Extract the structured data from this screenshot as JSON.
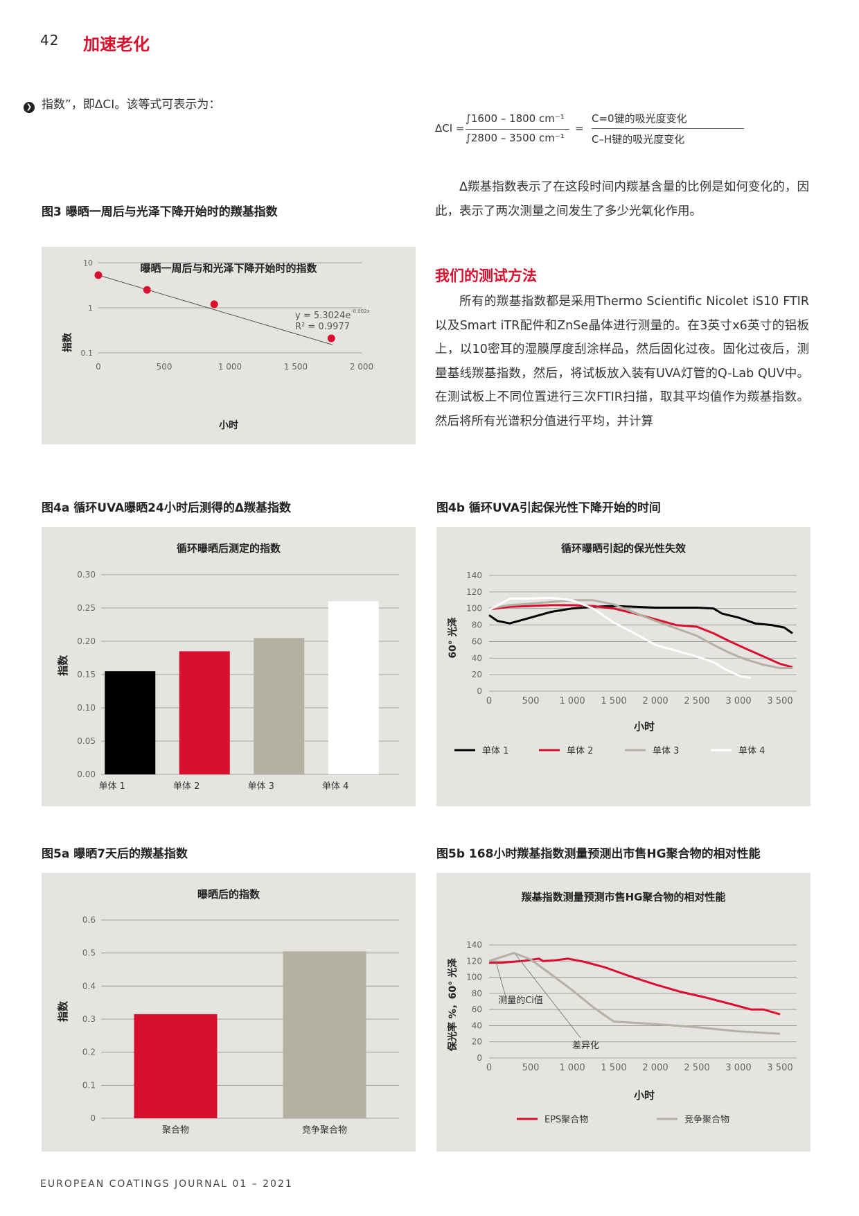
{
  "header": {
    "page_number": "42",
    "section": "加速老化"
  },
  "intro_line": "指数”，即ΔCI。该等式可表示为：",
  "formula": {
    "lhs": "ΔCI =",
    "numerator": "∫1600 – 1800 cm⁻¹",
    "denominator": "∫2800 – 3500 cm⁻¹",
    "equals": "=",
    "right_numerator": "C=0键的吸光度变化",
    "right_denominator": "C–H键的吸光度变化"
  },
  "para1": "Δ羰基指数表示了在这段时间内羰基含量的比例是如何变化的，因此，表示了两次测量之间发生了多少光氧化作用。",
  "section_title": "我们的测试方法",
  "para2": "所有的羰基指数都是采用Thermo Scientific Nicolet iS10 FTIR以及Smart iTR配件和ZnSe晶体进行测量的。在3英寸x6英寸的铝板上，以10密耳的湿膜厚度刮涂样品，然后固化过夜。固化过夜后，测量基线羰基指数，然后，将试板放入装有UVA灯管的Q-Lab QUV中。在测试板上不同位置进行三次FTIR扫描，取其平均值作为羰基指数。然后将所有光谱积分值进行平均，并计算",
  "figures": {
    "fig3": {
      "caption": "图3 曝晒一周后与光泽下降开始时的羰基指数"
    },
    "fig4a": {
      "caption": "图4a 循环UVA曝晒24小时后测得的Δ羰基指数"
    },
    "fig4b": {
      "caption": "图4b 循环UVA引起保光性下降开始的时间"
    },
    "fig5a": {
      "caption": "图5a 曝晒7天后的羰基指数"
    },
    "fig5b": {
      "caption": "图5b 168小时羰基指数测量预测出市售HG聚合物的相对性能"
    }
  },
  "chart_data": [
    {
      "id": "fig3",
      "type": "scatter",
      "title": "曝晒一周后与和光泽下降开始时的指数",
      "xlabel": "小时",
      "ylabel": "指数",
      "yscale": "log",
      "xlim": [
        0,
        2000
      ],
      "ylim": [
        0.1,
        10
      ],
      "x_ticks": [
        "0",
        "500",
        "1 000",
        "1 500",
        "2 000"
      ],
      "y_ticks": [
        "10",
        "1",
        "0.1"
      ],
      "points": [
        {
          "x": 0,
          "y": 5.3
        },
        {
          "x": 370,
          "y": 2.5
        },
        {
          "x": 880,
          "y": 1.2
        },
        {
          "x": 1770,
          "y": 0.21
        }
      ],
      "trendline": {
        "a": 5.3024,
        "b": -0.002
      },
      "equation": "y = 5.3024e",
      "equation_exp": "-0.002x",
      "r2": "R² = 0.9977",
      "colors": {
        "point": "#d8102e",
        "line": "#555555"
      },
      "grid": true
    },
    {
      "id": "fig4a",
      "type": "bar",
      "title": "循环曝晒后测定的指数",
      "ylabel": "指数",
      "ylim": [
        0,
        0.3
      ],
      "y_ticks": [
        "0.30",
        "0.25",
        "0.20",
        "0.15",
        "0.10",
        "0.05",
        "0.00"
      ],
      "categories": [
        "单体 1",
        "单体 2",
        "单体 3",
        "单体 4"
      ],
      "values": [
        0.155,
        0.185,
        0.205,
        0.26
      ],
      "colors": [
        "#000000",
        "#d8102e",
        "#b3b0a4",
        "#ffffff"
      ],
      "grid": true
    },
    {
      "id": "fig4b",
      "type": "line",
      "title": "循环曝晒引起的保光性失效",
      "xlabel": "小时",
      "ylabel": "60° 光泽",
      "xlim": [
        0,
        3700
      ],
      "ylim": [
        0,
        140
      ],
      "x_ticks": [
        "0",
        "500",
        "1 000",
        "1 500",
        "2 000",
        "2 500",
        "3 000",
        "3 500"
      ],
      "y_ticks": [
        "140",
        "120",
        "100",
        "80",
        "60",
        "40",
        "20",
        "0"
      ],
      "series": [
        {
          "name": "单体 1",
          "color": "#000000",
          "x": [
            0,
            100,
            250,
            500,
            750,
            1000,
            1250,
            1500,
            1750,
            2000,
            2250,
            2500,
            2700,
            2800,
            3000,
            3200,
            3400,
            3550,
            3650
          ],
          "y": [
            92,
            85,
            82,
            89,
            96,
            100,
            102,
            103,
            102,
            101,
            101,
            101,
            100,
            94,
            89,
            82,
            80,
            77,
            70
          ]
        },
        {
          "name": "单体 2",
          "color": "#d8102e",
          "x": [
            0,
            250,
            500,
            750,
            1000,
            1250,
            1500,
            1750,
            2000,
            2250,
            2500,
            2700,
            2900,
            3100,
            3300,
            3500,
            3650
          ],
          "y": [
            99,
            102,
            103,
            104,
            104,
            103,
            100,
            94,
            87,
            80,
            78,
            70,
            60,
            51,
            42,
            33,
            29
          ]
        },
        {
          "name": "单体 3",
          "color": "#b3b0a4",
          "x": [
            0,
            250,
            500,
            750,
            1000,
            1250,
            1500,
            1750,
            2000,
            2250,
            2500,
            2700,
            2900,
            3100,
            3300,
            3500,
            3650
          ],
          "y": [
            100,
            104,
            106,
            108,
            110,
            110,
            105,
            95,
            85,
            76,
            67,
            56,
            46,
            38,
            32,
            28,
            28
          ]
        },
        {
          "name": "单体 4",
          "color": "#ffffff",
          "x": [
            0,
            250,
            500,
            750,
            1000,
            1250,
            1500,
            1750,
            2000,
            2250,
            2500,
            2700,
            2850,
            3000,
            3150
          ],
          "y": [
            98,
            112,
            112,
            113,
            110,
            100,
            83,
            70,
            56,
            49,
            42,
            35,
            26,
            19,
            16
          ]
        }
      ],
      "legend_position": "bottom",
      "grid": true
    },
    {
      "id": "fig5a",
      "type": "bar",
      "title": "曝晒后的指数",
      "ylabel": "指数",
      "ylim": [
        0,
        0.6
      ],
      "y_ticks": [
        "0.6",
        "0.5",
        "0.4",
        "0.3",
        "0.2",
        "0.1",
        "0"
      ],
      "categories": [
        "聚合物",
        "竞争聚合物"
      ],
      "values": [
        0.315,
        0.505
      ],
      "colors": [
        "#d8102e",
        "#b3b0a4"
      ],
      "grid": true
    },
    {
      "id": "fig5b",
      "type": "line",
      "title": "羰基指数测量预测市售HG聚合物的相对性能",
      "xlabel": "小时",
      "ylabel": "保光率 %，60° 光泽",
      "xlim": [
        0,
        3700
      ],
      "ylim": [
        0,
        140
      ],
      "x_ticks": [
        "0",
        "500",
        "1 000",
        "1 500",
        "2 000",
        "2 500",
        "3 000",
        "3 500"
      ],
      "y_ticks": [
        "140",
        "120",
        "100",
        "80",
        "60",
        "40",
        "20",
        "0"
      ],
      "series": [
        {
          "name": "EPS聚合物",
          "color": "#d8102e",
          "x": [
            0,
            150,
            400,
            600,
            650,
            800,
            950,
            1150,
            1400,
            1700,
            2000,
            2300,
            2600,
            2900,
            3150,
            3300,
            3500
          ],
          "y": [
            118,
            118,
            120,
            123,
            120,
            121,
            123,
            119,
            112,
            101,
            91,
            82,
            75,
            67,
            60,
            60,
            54
          ]
        },
        {
          "name": "竞争聚合物",
          "color": "#b3b0a4",
          "x": [
            0,
            300,
            500,
            700,
            1000,
            1250,
            1500,
            2000,
            2500,
            3000,
            3500
          ],
          "y": [
            120,
            130,
            122,
            107,
            84,
            63,
            45,
            42,
            38,
            33,
            30
          ]
        }
      ],
      "annotations": [
        {
          "text": "测量的Ci值",
          "x": 110,
          "y": 68
        },
        {
          "text": "差异化",
          "x": 1000,
          "y": 12
        }
      ],
      "legend_position": "bottom",
      "grid": true
    }
  ],
  "footer": "EUROPEAN COATINGS JOURNAL 01 – 2021"
}
